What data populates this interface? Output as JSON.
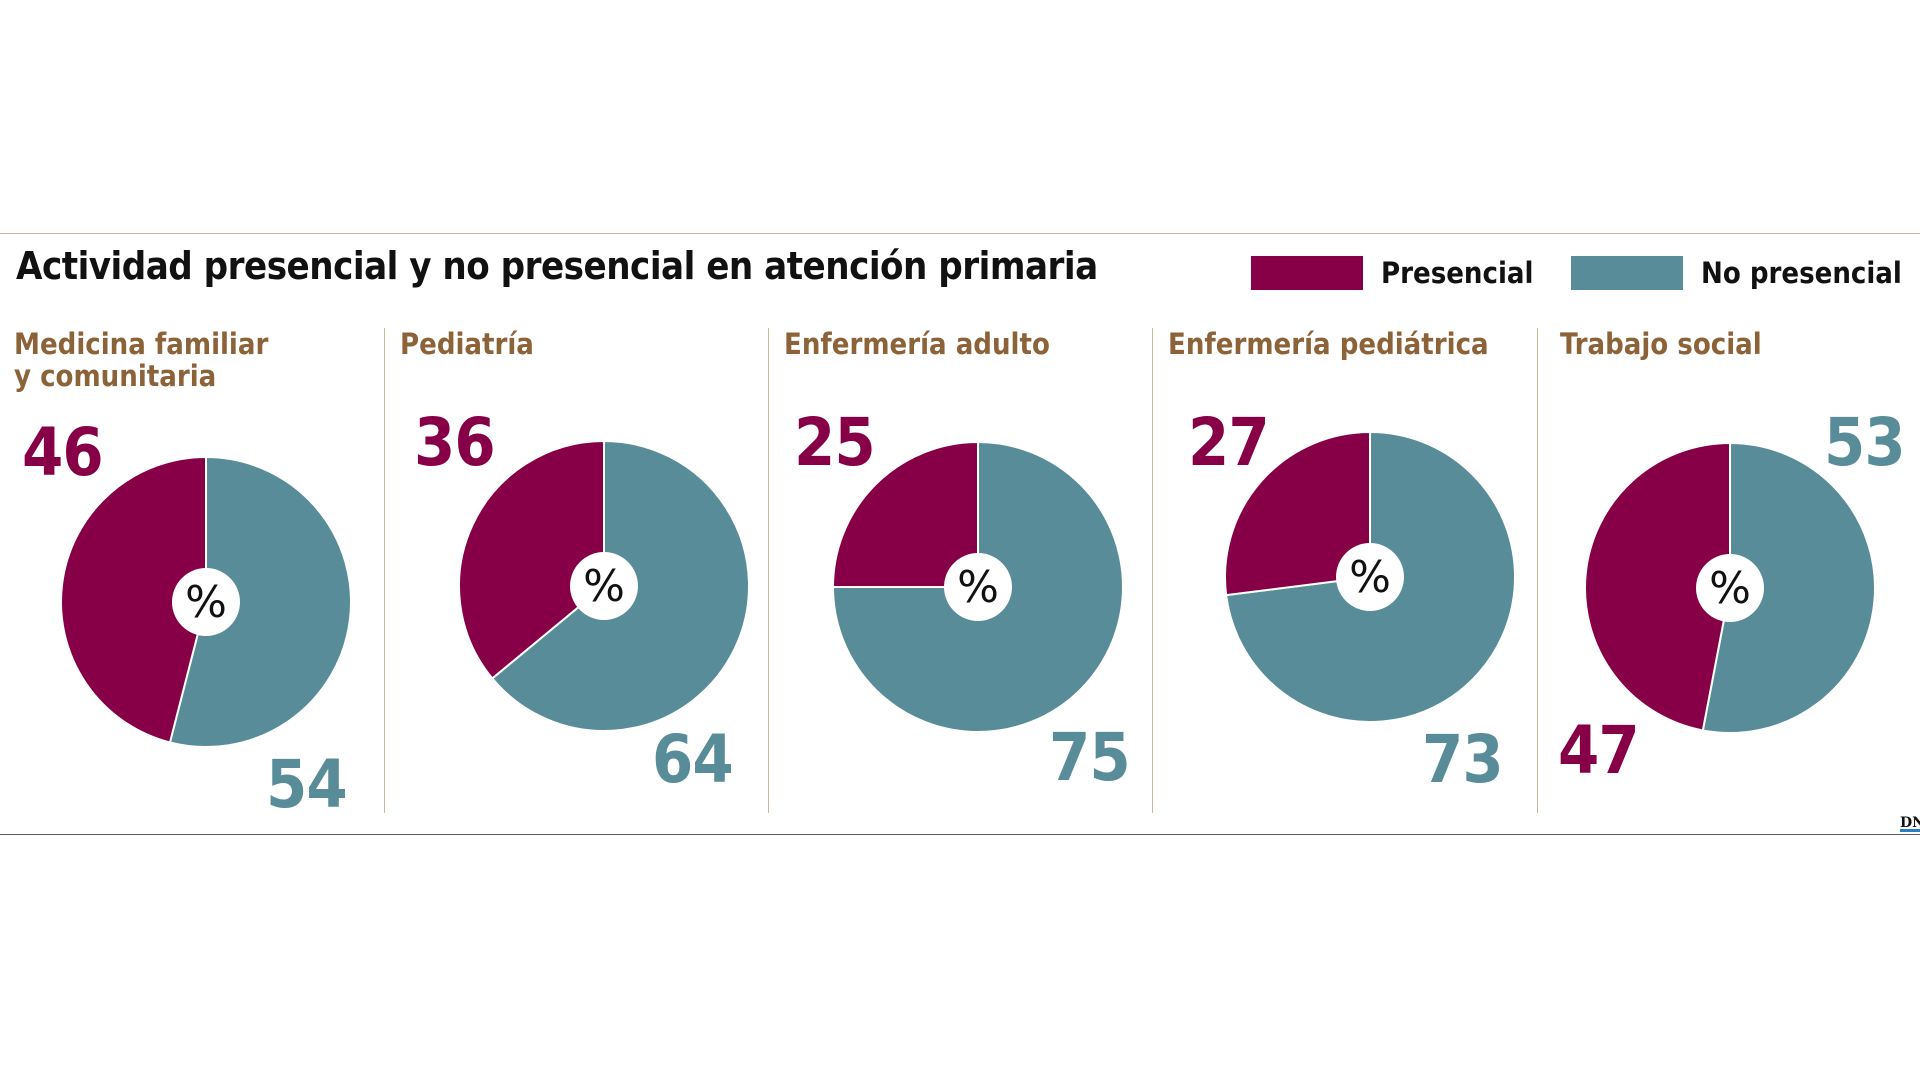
{
  "chart_data": {
    "type": "pie",
    "title": "Actividad presencial y no presencial en atención primaria",
    "unit": "%",
    "legend": {
      "position": "top-right",
      "entries": [
        {
          "name": "Presencial",
          "color": "#870047"
        },
        {
          "name": "No presencial",
          "color": "#578c98"
        }
      ]
    },
    "panels": [
      {
        "title": "Medicina familiar\ny comunitaria",
        "presencial": 46,
        "no_presencial": 54,
        "presencial_label": "46",
        "no_presencial_label": "54"
      },
      {
        "title": "Pediatría",
        "presencial": 36,
        "no_presencial": 64,
        "presencial_label": "36",
        "no_presencial_label": "64"
      },
      {
        "title": "Enfermería adulto",
        "presencial": 25,
        "no_presencial": 75,
        "presencial_label": "25",
        "no_presencial_label": "75"
      },
      {
        "title": "Enfermería pediátrica",
        "presencial": 27,
        "no_presencial": 73,
        "presencial_label": "27",
        "no_presencial_label": "73"
      },
      {
        "title": "Trabajo social",
        "presencial": 47,
        "no_presencial": 53,
        "presencial_label": "47",
        "no_presencial_label": "53"
      }
    ]
  },
  "logo_text": "DN",
  "colors": {
    "presencial": "#870047",
    "no_presencial": "#578c98",
    "section_title": "#8c6239",
    "rule": "#c9b79c"
  }
}
